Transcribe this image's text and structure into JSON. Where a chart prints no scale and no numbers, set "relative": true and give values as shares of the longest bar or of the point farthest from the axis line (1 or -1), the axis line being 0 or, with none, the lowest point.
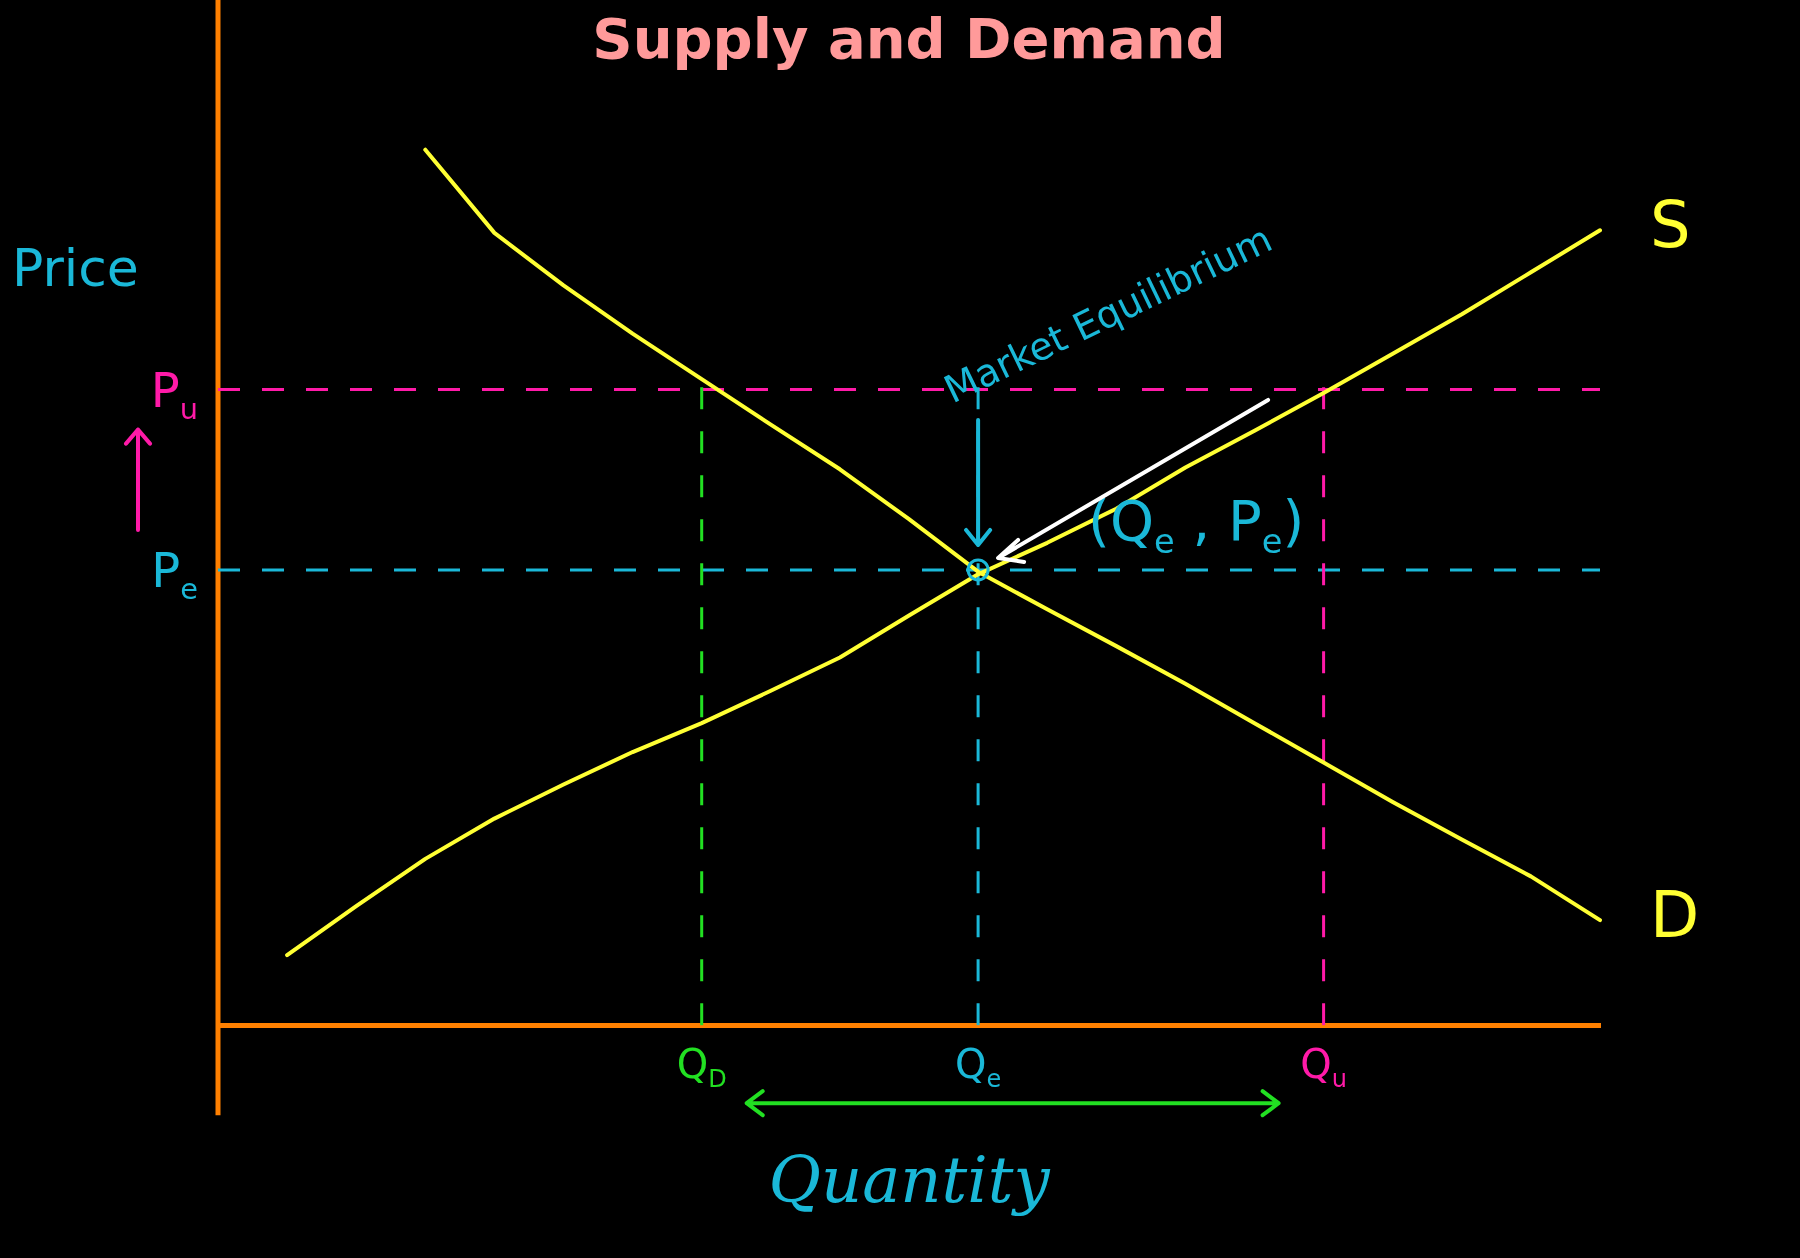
{
  "chart_data": {
    "type": "line",
    "title": "Supply and Demand",
    "xlabel": "Quantity",
    "ylabel": "Price",
    "relative": true,
    "tick_labels": "x",
    "legend": false,
    "marker": "none",
    "line_style": "solid",
    "categories": [
      null,
      null,
      null,
      null,
      null,
      null,
      null,
      "Q$_{D}$",
      null,
      null,
      null,
      "Q$_{e}$",
      null,
      null,
      null,
      null,
      "Q$_{u}$",
      null,
      null,
      null,
      null
    ],
    "series": [
      {
        "name": "S",
        "color": "#ffff33",
        "values": [
          null,
          0.08,
          0.136,
          0.19,
          0.236,
          0.275,
          0.312,
          0.345,
          0.382,
          0.42,
          0.468,
          0.515,
          0.551,
          0.59,
          0.637,
          0.679,
          0.722,
          0.767,
          0.812,
          0.86,
          0.908
        ]
      },
      {
        "name": "D",
        "color": "#ffff33",
        "values": [
          null,
          null,
          null,
          1.0,
          0.905,
          0.845,
          0.79,
          0.738,
          0.686,
          0.635,
          0.578,
          0.518,
          0.475,
          0.433,
          0.39,
          0.345,
          0.3,
          0.255,
          0.212,
          0.17,
          0.12
        ]
      }
    ],
    "ref_lines": [
      {
        "axis": "y",
        "value": 0.726,
        "label": "P$_{u}$",
        "color": "#ff1aa8",
        "line_style": "dashed"
      },
      {
        "axis": "y",
        "value": 0.52,
        "label": "P$_{e}$",
        "color": "#1ab8d8",
        "line_style": "dashed"
      },
      {
        "axis": "x",
        "value": "Q$_{D}$",
        "color": "#22e022",
        "line_style": "dashed"
      },
      {
        "axis": "x",
        "value": "Q$_{e}$",
        "color": "#1ab8d8",
        "line_style": "dashed"
      },
      {
        "axis": "x",
        "value": "Q$_{u}$",
        "color": "#ff1aa8",
        "line_style": "dashed"
      }
    ],
    "annotations": [
      "Market Equilibrium",
      {
        "text": "(Q$_{e}$ , P$_{e}$)",
        "x": "Q$_{e}$",
        "y": 0.52
      }
    ]
  }
}
